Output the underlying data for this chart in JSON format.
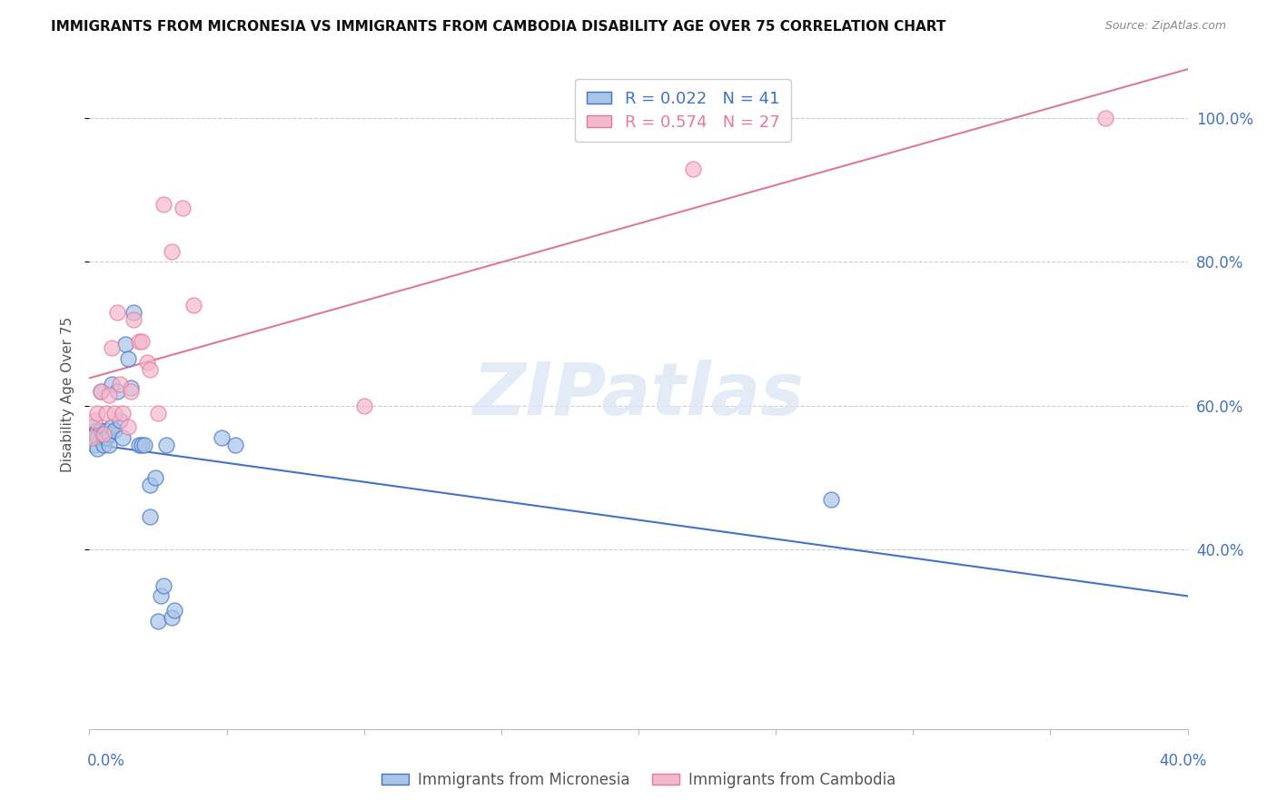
{
  "title": "IMMIGRANTS FROM MICRONESIA VS IMMIGRANTS FROM CAMBODIA DISABILITY AGE OVER 75 CORRELATION CHART",
  "source": "Source: ZipAtlas.com",
  "ylabel": "Disability Age Over 75",
  "xlim": [
    0.0,
    0.4
  ],
  "ylim": [
    0.15,
    1.08
  ],
  "yticks": [
    0.4,
    0.6,
    0.8,
    1.0
  ],
  "ytick_labels": [
    "40.0%",
    "60.0%",
    "80.0%",
    "100.0%"
  ],
  "xtick_left_label": "0.0%",
  "xtick_right_label": "40.0%",
  "legend_r_mic": "R = 0.022",
  "legend_n_mic": "N = 41",
  "legend_r_cam": "R = 0.574",
  "legend_n_cam": "N = 27",
  "color_micronesia_fill": "#a8c4e8",
  "color_micronesia_edge": "#4472c4",
  "color_cambodia_fill": "#f4b8cc",
  "color_cambodia_edge": "#e8799a",
  "color_line_micronesia": "#4472c4",
  "color_line_cambodia": "#e07898",
  "color_axis_text": "#4472c4",
  "watermark_text": "ZIPatlas",
  "watermark_color": "#dde8f5",
  "mic_x": [
    0.001,
    0.001,
    0.002,
    0.002,
    0.003,
    0.003,
    0.003,
    0.004,
    0.004,
    0.005,
    0.005,
    0.005,
    0.006,
    0.006,
    0.007,
    0.007,
    0.008,
    0.008,
    0.009,
    0.01,
    0.011,
    0.012,
    0.013,
    0.014,
    0.015,
    0.016,
    0.018,
    0.019,
    0.02,
    0.022,
    0.022,
    0.024,
    0.025,
    0.026,
    0.027,
    0.028,
    0.03,
    0.031,
    0.048,
    0.053,
    0.27
  ],
  "mic_y": [
    0.555,
    0.57,
    0.56,
    0.545,
    0.565,
    0.555,
    0.54,
    0.62,
    0.565,
    0.56,
    0.555,
    0.545,
    0.565,
    0.555,
    0.56,
    0.545,
    0.63,
    0.57,
    0.565,
    0.62,
    0.58,
    0.555,
    0.685,
    0.665,
    0.625,
    0.73,
    0.545,
    0.545,
    0.545,
    0.49,
    0.445,
    0.5,
    0.3,
    0.335,
    0.35,
    0.545,
    0.305,
    0.315,
    0.555,
    0.545,
    0.47
  ],
  "cam_x": [
    0.001,
    0.002,
    0.003,
    0.004,
    0.005,
    0.006,
    0.007,
    0.008,
    0.009,
    0.01,
    0.011,
    0.012,
    0.014,
    0.015,
    0.016,
    0.018,
    0.019,
    0.021,
    0.022,
    0.025,
    0.027,
    0.03,
    0.034,
    0.038,
    0.1,
    0.22,
    0.37
  ],
  "cam_y": [
    0.555,
    0.58,
    0.59,
    0.62,
    0.56,
    0.59,
    0.615,
    0.68,
    0.59,
    0.73,
    0.63,
    0.59,
    0.57,
    0.62,
    0.72,
    0.69,
    0.69,
    0.66,
    0.65,
    0.59,
    0.88,
    0.815,
    0.875,
    0.74,
    0.6,
    0.93,
    1.0
  ]
}
